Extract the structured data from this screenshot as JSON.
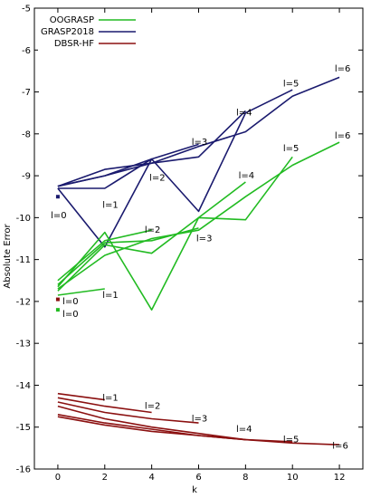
{
  "chart_data": {
    "type": "line",
    "xlabel": "k",
    "ylabel": "Absolute Error",
    "xlim": [
      -1,
      13
    ],
    "ylim": [
      -16,
      -5
    ],
    "xticks": [
      "0",
      "2",
      "4",
      "6",
      "8",
      "10",
      "12"
    ],
    "yticks": [
      "-16",
      "-15",
      "-14",
      "-13",
      "-12",
      "-11",
      "-10",
      "-9",
      "-8",
      "-7",
      "-6",
      "-5"
    ],
    "grid": false,
    "legend_position": "top-left",
    "legend": [
      {
        "name": "OOGRASP",
        "color": "#22bb22"
      },
      {
        "name": "GRASP2018",
        "color": "#1a1a6e"
      },
      {
        "name": "DBSR-HF",
        "color": "#8b1010"
      }
    ],
    "series": [
      {
        "group": "GRASP2018",
        "color": "#1a1a6e",
        "x": [
          0
        ],
        "y": [
          -9.5
        ],
        "point": true
      },
      {
        "group": "GRASP2018",
        "color": "#1a1a6e",
        "x": [
          0,
          2,
          4
        ],
        "y": [
          -9.3,
          -9.3,
          -8.6
        ]
      },
      {
        "group": "GRASP2018",
        "color": "#1a1a6e",
        "x": [
          0,
          2,
          4,
          6
        ],
        "y": [
          -9.25,
          -9.0,
          -8.6,
          -8.25
        ]
      },
      {
        "group": "GRASP2018",
        "color": "#1a1a6e",
        "x": [
          0,
          2,
          4,
          6,
          8
        ],
        "y": [
          -9.25,
          -8.85,
          -8.7,
          -8.55,
          -7.45
        ]
      },
      {
        "group": "GRASP2018",
        "color": "#1a1a6e",
        "x": [
          0,
          2,
          4,
          6,
          8,
          10
        ],
        "y": [
          -9.3,
          -10.7,
          -8.6,
          -9.85,
          -7.5,
          -6.95
        ]
      },
      {
        "group": "GRASP2018",
        "color": "#1a1a6e",
        "x": [
          0,
          2,
          4,
          6,
          8,
          10,
          12
        ],
        "y": [
          -9.25,
          -9.0,
          -8.7,
          -8.3,
          -7.95,
          -7.1,
          -6.65
        ]
      },
      {
        "group": "OOGRASP",
        "color": "#22bb22",
        "x": [
          0
        ],
        "y": [
          -12.2
        ],
        "point": true
      },
      {
        "group": "OOGRASP",
        "color": "#22bb22",
        "x": [
          0,
          2
        ],
        "y": [
          -11.85,
          -11.7
        ]
      },
      {
        "group": "OOGRASP",
        "color": "#22bb22",
        "x": [
          0,
          2,
          4
        ],
        "y": [
          -11.5,
          -10.55,
          -10.3
        ]
      },
      {
        "group": "OOGRASP",
        "color": "#22bb22",
        "x": [
          0,
          2,
          4,
          6
        ],
        "y": [
          -11.6,
          -10.6,
          -10.55,
          -10.25
        ]
      },
      {
        "group": "OOGRASP",
        "color": "#22bb22",
        "x": [
          0,
          2,
          4,
          6,
          8
        ],
        "y": [
          -11.75,
          -10.65,
          -10.85,
          -10.0,
          -9.15
        ]
      },
      {
        "group": "OOGRASP",
        "color": "#22bb22",
        "x": [
          0,
          2,
          4,
          6,
          8,
          10
        ],
        "y": [
          -11.65,
          -10.35,
          -12.2,
          -10.0,
          -10.05,
          -8.55
        ]
      },
      {
        "group": "OOGRASP",
        "color": "#22bb22",
        "x": [
          0,
          2,
          4,
          6,
          8,
          10,
          12
        ],
        "y": [
          -11.7,
          -10.9,
          -10.5,
          -10.3,
          -9.5,
          -8.75,
          -8.2
        ]
      },
      {
        "group": "DBSR-HF",
        "color": "#8b1010",
        "x": [
          0
        ],
        "y": [
          -11.95
        ],
        "point": true
      },
      {
        "group": "DBSR-HF",
        "color": "#8b1010",
        "x": [
          0,
          2
        ],
        "y": [
          -14.2,
          -14.35
        ]
      },
      {
        "group": "DBSR-HF",
        "color": "#8b1010",
        "x": [
          0,
          2,
          4
        ],
        "y": [
          -14.3,
          -14.5,
          -14.65
        ]
      },
      {
        "group": "DBSR-HF",
        "color": "#8b1010",
        "x": [
          0,
          2,
          4,
          6
        ],
        "y": [
          -14.4,
          -14.65,
          -14.8,
          -14.9
        ]
      },
      {
        "group": "DBSR-HF",
        "color": "#8b1010",
        "x": [
          0,
          2,
          4,
          6,
          8
        ],
        "y": [
          -14.5,
          -14.8,
          -15.0,
          -15.15,
          -15.3
        ]
      },
      {
        "group": "DBSR-HF",
        "color": "#8b1010",
        "x": [
          0,
          2,
          4,
          6,
          8,
          10
        ],
        "y": [
          -14.7,
          -14.9,
          -15.05,
          -15.2,
          -15.3,
          -15.35
        ]
      },
      {
        "group": "DBSR-HF",
        "color": "#8b1010",
        "x": [
          0,
          2,
          4,
          6,
          8,
          10,
          12
        ],
        "y": [
          -14.75,
          -14.95,
          -15.1,
          -15.2,
          -15.3,
          -15.38,
          -15.42
        ]
      }
    ],
    "annotations": [
      {
        "text": "l=0",
        "x": -0.3,
        "y": -9.95
      },
      {
        "text": "l=1",
        "x": 1.9,
        "y": -9.7
      },
      {
        "text": "l=2",
        "x": 3.9,
        "y": -9.05
      },
      {
        "text": "l=3",
        "x": 5.7,
        "y": -8.2
      },
      {
        "text": "l=4",
        "x": 7.6,
        "y": -7.5
      },
      {
        "text": "l=5",
        "x": 9.6,
        "y": -6.8
      },
      {
        "text": "l=6",
        "x": 11.8,
        "y": -6.45
      },
      {
        "text": "l=0",
        "x": 0.2,
        "y": -12.0
      },
      {
        "text": "l=0",
        "x": 0.2,
        "y": -12.3
      },
      {
        "text": "l=1",
        "x": 1.9,
        "y": -11.85
      },
      {
        "text": "l=2",
        "x": 3.7,
        "y": -10.3
      },
      {
        "text": "l=3",
        "x": 5.9,
        "y": -10.5
      },
      {
        "text": "l=4",
        "x": 7.7,
        "y": -9.0
      },
      {
        "text": "l=5",
        "x": 9.6,
        "y": -8.35
      },
      {
        "text": "l=6",
        "x": 11.8,
        "y": -8.05
      },
      {
        "text": "l=1",
        "x": 1.9,
        "y": -14.3
      },
      {
        "text": "l=2",
        "x": 3.7,
        "y": -14.5
      },
      {
        "text": "l=3",
        "x": 5.7,
        "y": -14.8
      },
      {
        "text": "l=4",
        "x": 7.6,
        "y": -15.05
      },
      {
        "text": "l=5",
        "x": 9.6,
        "y": -15.3
      },
      {
        "text": "l=6",
        "x": 11.7,
        "y": -15.45
      }
    ]
  }
}
